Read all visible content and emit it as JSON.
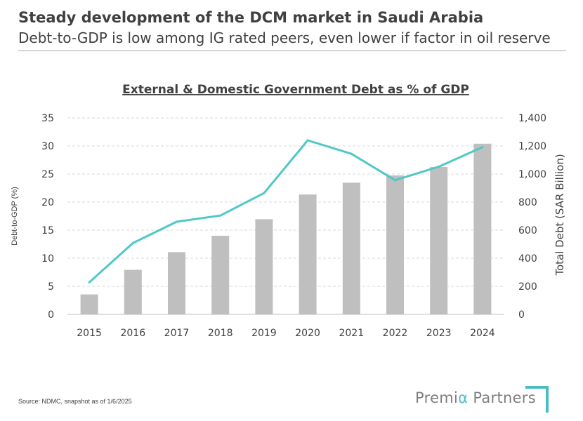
{
  "header": {
    "title": "Steady development of the DCM market in Saudi Arabia",
    "subtitle": "Debt-to-GDP is low among IG rated peers, even lower if factor in oil reserve"
  },
  "chart_data": {
    "type": "bar",
    "title": "External & Domestic Government Debt as % of GDP",
    "categories": [
      "2015",
      "2016",
      "2017",
      "2018",
      "2019",
      "2020",
      "2021",
      "2022",
      "2023",
      "2024"
    ],
    "series": [
      {
        "name": "Total Debt (SAR Billion)",
        "type": "bar",
        "axis": "right",
        "color": "#bfbfbf",
        "values": [
          142,
          317,
          443,
          560,
          678,
          854,
          938,
          990,
          1050,
          1216
        ]
      },
      {
        "name": "Debt-to-GDP (%)",
        "type": "line",
        "axis": "left",
        "color": "#4fc8c6",
        "values": [
          5.7,
          12.7,
          16.5,
          17.6,
          21.6,
          31.0,
          28.6,
          23.9,
          26.3,
          29.8
        ]
      }
    ],
    "ylabel": "Debt-to-GDP (%)",
    "y2label": "Total Debt (SAR Billion)",
    "ylim": [
      0,
      35
    ],
    "y2lim": [
      0,
      1400
    ],
    "yticks": [
      "0",
      "5",
      "10",
      "15",
      "20",
      "25",
      "30",
      "35"
    ],
    "y2ticks": [
      "0",
      "200",
      "400",
      "600",
      "800",
      "1,000",
      "1,200",
      "1,400"
    ],
    "grid": true
  },
  "footer": {
    "source": "Source: NDMC, snapshot as of 1/6/2025",
    "logo_prefix": "Premi",
    "logo_alpha": "α",
    "logo_suffix": " Partners",
    "accent_color": "#4bbdbf"
  }
}
